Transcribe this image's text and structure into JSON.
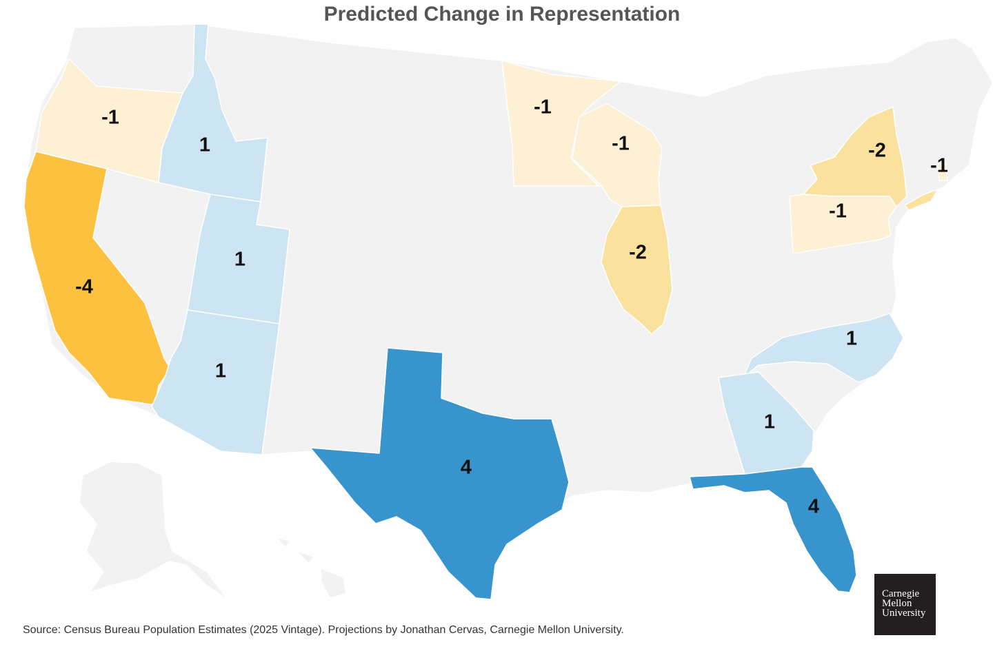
{
  "title": "Predicted Change in Representation",
  "source": "Source: Census Bureau Population Estimates (2025 Vintage). Projections by Jonathan Cervas, Carnegie Mellon University.",
  "logo": {
    "line1": "Carnegie",
    "line2": "Mellon",
    "line3": "University"
  },
  "colors": {
    "neutral": "#f2f2f2",
    "gain_1": "#cde4f2",
    "gain_4": "#3794cc",
    "loss_1": "#fdf0d4",
    "loss_2": "#fbe19e",
    "loss_4": "#fcc13f",
    "border": "#ffffff"
  },
  "states": [
    {
      "name": "Oregon",
      "change": "-1"
    },
    {
      "name": "California",
      "change": "-4"
    },
    {
      "name": "Idaho",
      "change": "1"
    },
    {
      "name": "Utah",
      "change": "1"
    },
    {
      "name": "Arizona",
      "change": "1"
    },
    {
      "name": "Texas",
      "change": "4"
    },
    {
      "name": "Minnesota",
      "change": "-1"
    },
    {
      "name": "Wisconsin",
      "change": "-1"
    },
    {
      "name": "Illinois",
      "change": "-2"
    },
    {
      "name": "New York",
      "change": "-2"
    },
    {
      "name": "Pennsylvania",
      "change": "-1"
    },
    {
      "name": "Rhode Island",
      "change": "-1"
    },
    {
      "name": "North Carolina",
      "change": "1"
    },
    {
      "name": "Georgia",
      "change": "1"
    },
    {
      "name": "Florida",
      "change": "4"
    }
  ]
}
